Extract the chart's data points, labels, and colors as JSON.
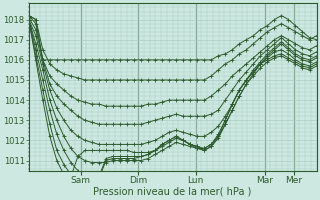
{
  "xlabel": "Pression niveau de la mer( hPa )",
  "background_color": "#cce8e0",
  "grid_color": "#aaccC4",
  "line_color": "#2d5a2d",
  "ylim": [
    1010.5,
    1018.8
  ],
  "yticks": [
    1011,
    1012,
    1013,
    1014,
    1015,
    1016,
    1017,
    1018
  ],
  "day_labels": [
    "Sam",
    "Dim",
    "Lun",
    "Mar",
    "Mer"
  ],
  "day_positions": [
    0.18,
    0.38,
    0.58,
    0.82,
    0.92
  ],
  "num_days": 1.0,
  "series": [
    [
      1018.2,
      1018.0,
      1016.0,
      1016.0,
      1016.0,
      1016.0,
      1016.0,
      1016.0,
      1016.0,
      1016.0,
      1016.0,
      1016.0,
      1016.0,
      1016.0,
      1016.0,
      1016.0,
      1016.0,
      1016.0,
      1016.0,
      1016.0,
      1016.0,
      1016.0,
      1016.0,
      1016.0,
      1016.0,
      1016.0,
      1016.0,
      1016.2,
      1016.3,
      1016.5,
      1016.8,
      1017.0,
      1017.2,
      1017.5,
      1017.7,
      1018.0,
      1018.2,
      1018.0,
      1017.7,
      1017.4,
      1017.1,
      1017.0
    ],
    [
      1018.2,
      1018.0,
      1016.5,
      1015.8,
      1015.5,
      1015.3,
      1015.2,
      1015.1,
      1015.0,
      1015.0,
      1015.0,
      1015.0,
      1015.0,
      1015.0,
      1015.0,
      1015.0,
      1015.0,
      1015.0,
      1015.0,
      1015.0,
      1015.0,
      1015.0,
      1015.0,
      1015.0,
      1015.0,
      1015.0,
      1015.2,
      1015.5,
      1015.8,
      1016.0,
      1016.3,
      1016.5,
      1016.8,
      1017.1,
      1017.4,
      1017.6,
      1017.8,
      1017.6,
      1017.4,
      1017.2,
      1017.0,
      1017.2
    ],
    [
      1018.2,
      1017.8,
      1016.0,
      1015.2,
      1014.8,
      1014.5,
      1014.2,
      1014.0,
      1013.9,
      1013.8,
      1013.8,
      1013.7,
      1013.7,
      1013.7,
      1013.7,
      1013.7,
      1013.7,
      1013.8,
      1013.8,
      1013.9,
      1014.0,
      1014.0,
      1014.0,
      1014.0,
      1014.0,
      1014.0,
      1014.2,
      1014.5,
      1014.8,
      1015.2,
      1015.5,
      1015.8,
      1016.1,
      1016.4,
      1016.7,
      1017.0,
      1017.2,
      1017.0,
      1016.8,
      1016.6,
      1016.5,
      1016.7
    ],
    [
      1018.1,
      1017.5,
      1016.0,
      1014.8,
      1014.2,
      1013.8,
      1013.5,
      1013.2,
      1013.0,
      1012.9,
      1012.8,
      1012.8,
      1012.8,
      1012.8,
      1012.8,
      1012.8,
      1012.8,
      1012.9,
      1013.0,
      1013.1,
      1013.2,
      1013.3,
      1013.2,
      1013.2,
      1013.2,
      1013.2,
      1013.3,
      1013.5,
      1014.0,
      1014.5,
      1015.0,
      1015.4,
      1015.8,
      1016.2,
      1016.5,
      1016.8,
      1017.1,
      1016.8,
      1016.5,
      1016.3,
      1016.2,
      1016.4
    ],
    [
      1018.0,
      1017.2,
      1015.8,
      1014.5,
      1013.6,
      1013.0,
      1012.5,
      1012.2,
      1012.0,
      1011.9,
      1011.8,
      1011.8,
      1011.8,
      1011.8,
      1011.8,
      1011.8,
      1011.8,
      1011.9,
      1012.0,
      1012.2,
      1012.4,
      1012.5,
      1012.4,
      1012.3,
      1012.2,
      1012.2,
      1012.4,
      1012.7,
      1013.2,
      1013.8,
      1014.5,
      1015.0,
      1015.5,
      1015.9,
      1016.3,
      1016.6,
      1016.9,
      1016.6,
      1016.3,
      1016.1,
      1016.0,
      1016.2
    ],
    [
      1018.0,
      1016.8,
      1015.5,
      1014.0,
      1013.0,
      1012.2,
      1011.6,
      1011.2,
      1011.0,
      1010.9,
      1010.9,
      1010.9,
      1011.0,
      1011.0,
      1011.0,
      1011.0,
      1011.0,
      1011.1,
      1011.3,
      1011.5,
      1011.7,
      1011.9,
      1011.8,
      1011.7,
      1011.6,
      1011.6,
      1011.8,
      1012.2,
      1012.8,
      1013.5,
      1014.2,
      1014.8,
      1015.3,
      1015.8,
      1016.2,
      1016.5,
      1016.8,
      1016.5,
      1016.2,
      1016.0,
      1015.9,
      1016.1
    ],
    [
      1018.0,
      1016.5,
      1015.0,
      1013.5,
      1012.3,
      1011.5,
      1010.9,
      1010.5,
      1010.2,
      1010.2,
      1010.2,
      1011.1,
      1011.2,
      1011.2,
      1011.2,
      1011.2,
      1011.2,
      1011.3,
      1011.5,
      1011.7,
      1011.9,
      1012.1,
      1012.0,
      1011.8,
      1011.7,
      1011.6,
      1011.8,
      1012.3,
      1013.0,
      1013.8,
      1014.5,
      1015.0,
      1015.4,
      1015.8,
      1016.1,
      1016.4,
      1016.5,
      1016.3,
      1016.0,
      1015.8,
      1015.7,
      1015.9
    ],
    [
      1018.0,
      1016.2,
      1014.5,
      1012.8,
      1011.5,
      1010.8,
      1010.3,
      1010.2,
      1010.1,
      1010.1,
      1010.1,
      1011.0,
      1011.1,
      1011.1,
      1011.1,
      1011.1,
      1011.2,
      1011.3,
      1011.5,
      1011.8,
      1012.0,
      1012.2,
      1012.0,
      1011.8,
      1011.6,
      1011.5,
      1011.7,
      1012.2,
      1013.0,
      1013.8,
      1014.5,
      1015.0,
      1015.4,
      1015.8,
      1016.0,
      1016.2,
      1016.3,
      1016.1,
      1015.9,
      1015.7,
      1015.6,
      1015.8
    ],
    [
      1018.0,
      1016.0,
      1014.0,
      1012.2,
      1011.0,
      1010.3,
      1010.2,
      1011.2,
      1011.5,
      1011.5,
      1011.5,
      1011.5,
      1011.5,
      1011.5,
      1011.5,
      1011.4,
      1011.4,
      1011.4,
      1011.5,
      1011.8,
      1012.0,
      1012.2,
      1012.0,
      1011.8,
      1011.7,
      1011.5,
      1011.7,
      1012.1,
      1012.8,
      1013.5,
      1014.2,
      1014.8,
      1015.2,
      1015.6,
      1015.9,
      1016.1,
      1016.2,
      1016.0,
      1015.8,
      1015.6,
      1015.5,
      1015.7
    ]
  ]
}
